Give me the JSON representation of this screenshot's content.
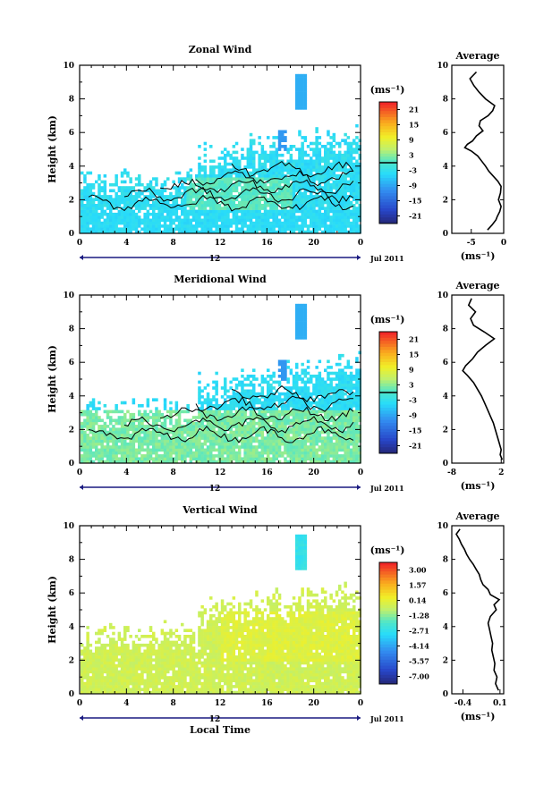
{
  "chart_data": [
    {
      "type": "heatmap",
      "title": "Zonal Wind",
      "ylabel": "Height (km)",
      "ylim": [
        0,
        10
      ],
      "yticks": [
        "0",
        "2",
        "4",
        "6",
        "8",
        "10"
      ],
      "xlim_hours": [
        0,
        24
      ],
      "xticks": [
        "0",
        "4",
        "8",
        "12",
        "16",
        "20",
        "0"
      ],
      "date_label": "12",
      "month_label": "Jul 2011",
      "colorbar": {
        "unit_label": "(ms⁻¹)",
        "ticks": [
          "21",
          "15",
          "9",
          "3",
          "-3",
          "-9",
          "-15",
          "-21"
        ],
        "range": [
          -24,
          24
        ]
      },
      "average": {
        "title": "Average",
        "xlabel": "(ms⁻¹)",
        "xticks": [
          "-5",
          "0"
        ],
        "xlim": [
          -8,
          0
        ],
        "heights": [
          0.2,
          0.5,
          0.8,
          1.0,
          1.3,
          1.6,
          2.0,
          2.4,
          2.8,
          3.1,
          3.4,
          3.7,
          4.0,
          4.3,
          4.6,
          4.9,
          5.1,
          5.3,
          5.5,
          5.8,
          6.1,
          6.4,
          6.7,
          7.0,
          7.3,
          7.6,
          8.0,
          8.4,
          8.8,
          9.2,
          9.6
        ],
        "values": [
          -2.5,
          -1.8,
          -1.2,
          -1.0,
          -0.6,
          -0.4,
          -0.8,
          -0.5,
          -0.4,
          -0.9,
          -1.6,
          -2.3,
          -2.8,
          -3.4,
          -4.0,
          -5.0,
          -6.0,
          -5.6,
          -4.8,
          -4.2,
          -3.2,
          -3.8,
          -3.6,
          -2.4,
          -1.7,
          -1.4,
          -2.8,
          -3.8,
          -4.6,
          -5.2,
          -4.2
        ]
      }
    },
    {
      "type": "heatmap",
      "title": "Meridional Wind",
      "ylabel": "Height (km)",
      "ylim": [
        0,
        10
      ],
      "yticks": [
        "0",
        "2",
        "4",
        "6",
        "8",
        "10"
      ],
      "xlim_hours": [
        0,
        24
      ],
      "xticks": [
        "0",
        "4",
        "8",
        "12",
        "16",
        "20",
        "0"
      ],
      "date_label": "12",
      "month_label": "Jul 2011",
      "colorbar": {
        "unit_label": "(ms⁻¹)",
        "ticks": [
          "21",
          "15",
          "9",
          "3",
          "-3",
          "-9",
          "-15",
          "-21"
        ],
        "range": [
          -24,
          24
        ]
      },
      "average": {
        "title": "Average",
        "xlabel": "(ms⁻¹)",
        "xticks": [
          "-8",
          "2"
        ],
        "xlim": [
          -8,
          2.5
        ],
        "heights": [
          0.2,
          0.5,
          0.8,
          1.2,
          1.6,
          2.0,
          2.4,
          2.8,
          3.2,
          3.6,
          4.0,
          4.4,
          4.8,
          5.2,
          5.5,
          5.8,
          6.2,
          6.6,
          7.0,
          7.4,
          7.8,
          8.2,
          8.6,
          9.0,
          9.4,
          9.8
        ],
        "values": [
          2.2,
          1.8,
          2.0,
          1.6,
          1.2,
          0.8,
          0.4,
          -0.2,
          -0.8,
          -1.4,
          -2.0,
          -2.8,
          -3.6,
          -4.8,
          -5.8,
          -5.2,
          -3.8,
          -2.8,
          -1.2,
          0.6,
          -1.4,
          -3.6,
          -4.2,
          -3.2,
          -4.6,
          -4.0
        ]
      }
    },
    {
      "type": "heatmap",
      "title": "Vertical Wind",
      "ylabel": "Height (km)",
      "xlabel": "Local Time",
      "ylim": [
        0,
        10
      ],
      "yticks": [
        "0",
        "2",
        "4",
        "6",
        "8",
        "10"
      ],
      "xlim_hours": [
        0,
        24
      ],
      "xticks": [
        "0",
        "4",
        "8",
        "12",
        "16",
        "20",
        "0"
      ],
      "date_label": "12",
      "month_label": "Jul 2011",
      "colorbar": {
        "unit_label": "(ms⁻¹)",
        "ticks": [
          "3.00",
          "1.57",
          "0.14",
          "-1.28",
          "-2.71",
          "-4.14",
          "-5.57",
          "-7.00"
        ],
        "range": [
          -7.7,
          3.7
        ]
      },
      "average": {
        "title": "Average",
        "xlabel": "(ms⁻¹)",
        "xticks": [
          "-0.4",
          "0.1"
        ],
        "xlim": [
          -0.55,
          0.15
        ],
        "heights": [
          0.2,
          0.6,
          1.0,
          1.4,
          1.8,
          2.2,
          2.6,
          3.0,
          3.4,
          3.8,
          4.2,
          4.6,
          5.0,
          5.3,
          5.6,
          5.9,
          6.2,
          6.5,
          6.8,
          7.1,
          7.4,
          7.7,
          8.0,
          8.3,
          8.6,
          8.9,
          9.2,
          9.5,
          9.8
        ],
        "values": [
          0.08,
          0.04,
          0.06,
          0.02,
          0.03,
          0.01,
          -0.01,
          0.0,
          -0.02,
          -0.04,
          -0.06,
          -0.03,
          0.05,
          0.02,
          0.09,
          -0.03,
          -0.06,
          -0.13,
          -0.16,
          -0.18,
          -0.22,
          -0.26,
          -0.31,
          -0.35,
          -0.38,
          -0.42,
          -0.45,
          -0.49,
          -0.44
        ]
      }
    }
  ]
}
